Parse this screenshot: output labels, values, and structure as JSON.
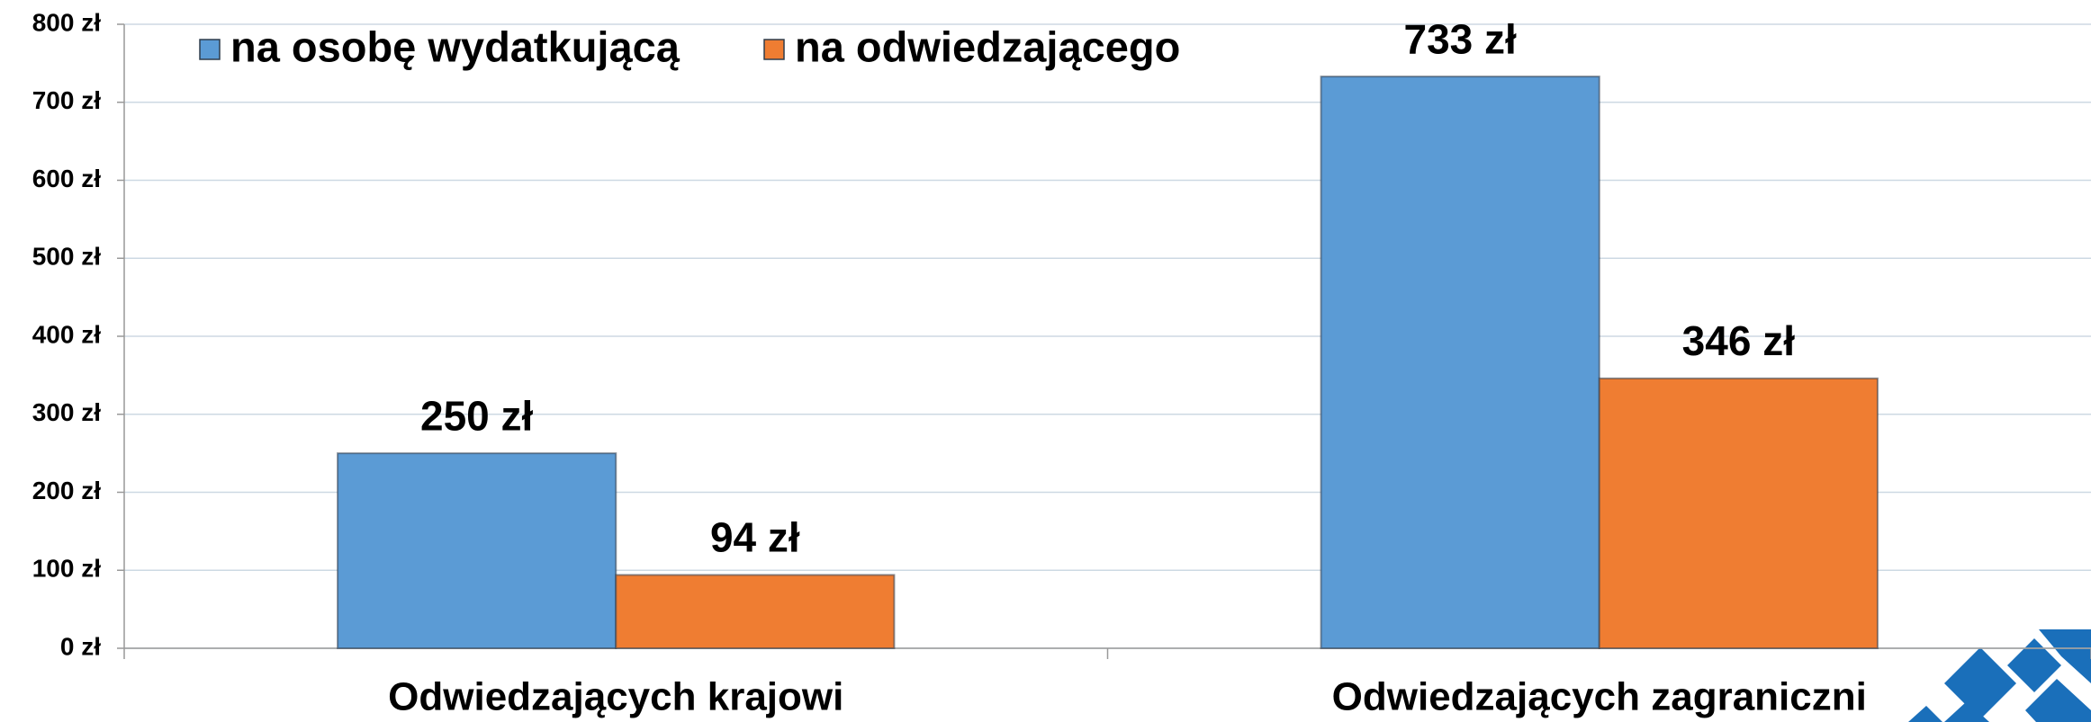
{
  "chart_data": {
    "type": "bar",
    "categories": [
      "Odwiedzających krajowi",
      "Odwiedzających zagraniczni"
    ],
    "series": [
      {
        "name": "na osobę wydatkującą",
        "color": "#5b9bd5",
        "values": [
          250,
          733
        ],
        "value_labels": [
          "250 zł",
          "733 zł"
        ]
      },
      {
        "name": "na odwiedzającego",
        "color": "#ef7d32",
        "values": [
          94,
          346
        ],
        "value_labels": [
          "94 zł",
          "346 zł"
        ]
      }
    ],
    "ylim": [
      0,
      800
    ],
    "yticks": [
      {
        "value": 0,
        "label": "0 zł"
      },
      {
        "value": 100,
        "label": "100 zł"
      },
      {
        "value": 200,
        "label": "200 zł"
      },
      {
        "value": 300,
        "label": "300 zł"
      },
      {
        "value": 400,
        "label": "400 zł"
      },
      {
        "value": 500,
        "label": "500 zł"
      },
      {
        "value": 600,
        "label": "600 zł"
      },
      {
        "value": 700,
        "label": "700 zł"
      },
      {
        "value": 800,
        "label": "800 zł"
      }
    ],
    "grid": true,
    "legend": "top"
  }
}
